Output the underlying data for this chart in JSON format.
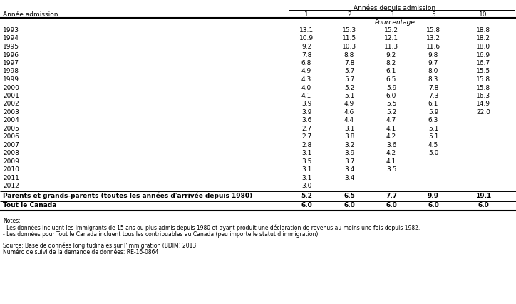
{
  "header_top": "Années depuis admission",
  "col_header_left": "Année admission",
  "col_headers": [
    "1",
    "2",
    "3",
    "5",
    "10"
  ],
  "pourcentage_label": "Pourcentage",
  "years": [
    "1993",
    "1994",
    "1995",
    "1996",
    "1997",
    "1998",
    "1999",
    "2000",
    "2001",
    "2002",
    "2003",
    "2004",
    "2005",
    "2006",
    "2007",
    "2008",
    "2009",
    "2010",
    "2011",
    "2012"
  ],
  "data": [
    [
      13.1,
      15.3,
      15.2,
      15.8,
      18.8
    ],
    [
      10.9,
      11.5,
      12.1,
      13.2,
      18.2
    ],
    [
      9.2,
      10.3,
      11.3,
      11.6,
      18.0
    ],
    [
      7.8,
      8.8,
      9.2,
      9.8,
      16.9
    ],
    [
      6.8,
      7.8,
      8.2,
      9.7,
      16.7
    ],
    [
      4.9,
      5.7,
      6.1,
      8.0,
      15.5
    ],
    [
      4.3,
      5.7,
      6.5,
      8.3,
      15.8
    ],
    [
      4.0,
      5.2,
      5.9,
      7.8,
      15.8
    ],
    [
      4.1,
      5.1,
      6.0,
      7.3,
      16.3
    ],
    [
      3.9,
      4.9,
      5.5,
      6.1,
      14.9
    ],
    [
      3.9,
      4.6,
      5.2,
      5.9,
      22.0
    ],
    [
      3.6,
      4.4,
      4.7,
      6.3,
      null
    ],
    [
      2.7,
      3.1,
      4.1,
      5.1,
      null
    ],
    [
      2.7,
      3.8,
      4.2,
      5.1,
      null
    ],
    [
      2.8,
      3.2,
      3.6,
      4.5,
      null
    ],
    [
      3.1,
      3.9,
      4.2,
      5.0,
      null
    ],
    [
      3.5,
      3.7,
      4.1,
      null,
      null
    ],
    [
      3.1,
      3.4,
      3.5,
      null,
      null
    ],
    [
      3.1,
      3.4,
      null,
      null,
      null
    ],
    [
      3.0,
      null,
      null,
      null,
      null
    ]
  ],
  "summary_row1_label": "Parents et grands-parents (toutes les années d'arrivée depuis 1980)",
  "summary_row1_data": [
    5.2,
    6.5,
    7.7,
    9.9,
    19.1
  ],
  "summary_row2_label": "Tout le Canada",
  "summary_row2_data": [
    6.0,
    6.0,
    6.0,
    6.0,
    6.0
  ],
  "notes": [
    "Notes:",
    "- Les données incluent les immigrants de 15 ans ou plus admis depuis 1980 et ayant produit une déclaration de revenus au moins une fois depuis 1982.",
    "- Les données pour Tout le Canada incluent tous les contribuables au Canada (peu importe le statut d'immigration)."
  ],
  "source_lines": [
    "Source: Base de données longitudinales sur l'immigration (BDIM) 2013",
    "Numéro de suivi de la demande de données: RE-16-0864"
  ],
  "bg_color": "#ffffff",
  "text_color": "#000000",
  "line_color": "#000000"
}
